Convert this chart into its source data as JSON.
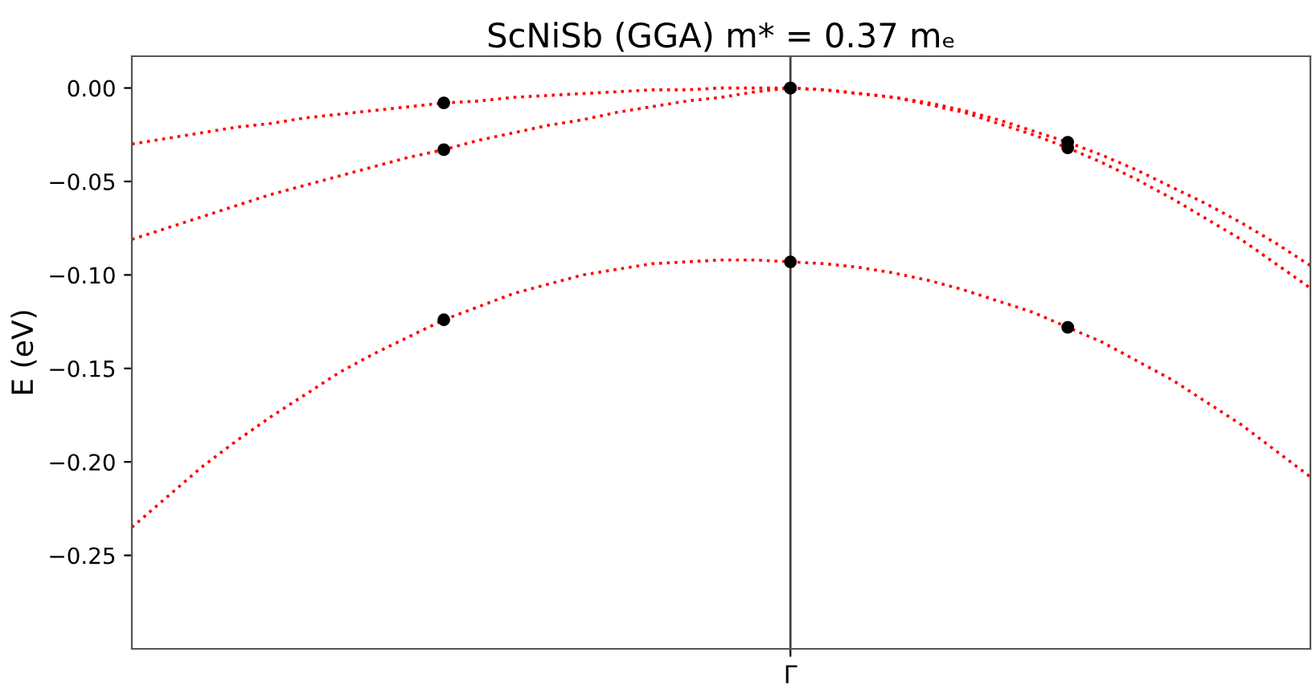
{
  "chart_data": {
    "type": "line",
    "title": "ScNiSb (GGA) m* = 0.37 mₑ",
    "ylabel": "E (eV)",
    "categories": [
      null,
      null,
      null,
      null,
      null,
      null,
      null,
      null,
      null,
      null,
      null,
      null,
      null,
      null,
      null,
      null,
      null,
      null,
      null,
      "Γ",
      null,
      null,
      null,
      null,
      null,
      null,
      null,
      null,
      null,
      null,
      null,
      null,
      null,
      null,
      null
    ],
    "series": [
      {
        "color": "#ff0000",
        "line_style": "dotted",
        "marker": "none",
        "values": [
          -0.03,
          -0.027,
          -0.024,
          -0.021,
          -0.019,
          -0.016,
          -0.014,
          -0.012,
          -0.01,
          -0.008,
          -0.007,
          -0.005,
          -0.004,
          -0.003,
          -0.002,
          -0.001,
          -0.001,
          0,
          0,
          0,
          -0.001,
          -0.003,
          -0.005,
          -0.008,
          -0.012,
          -0.017,
          -0.023,
          -0.029,
          -0.036,
          -0.044,
          -0.053,
          -0.062,
          -0.072,
          -0.083,
          -0.095
        ]
      },
      {
        "color": "#ff0000",
        "line_style": "dotted",
        "marker": "none",
        "values": [
          -0.081,
          -0.075,
          -0.069,
          -0.063,
          -0.057,
          -0.052,
          -0.047,
          -0.042,
          -0.037,
          -0.033,
          -0.028,
          -0.024,
          -0.02,
          -0.017,
          -0.013,
          -0.01,
          -0.007,
          -0.005,
          -0.002,
          0,
          -0.001,
          -0.003,
          -0.005,
          -0.009,
          -0.013,
          -0.019,
          -0.025,
          -0.032,
          -0.04,
          -0.049,
          -0.059,
          -0.07,
          -0.081,
          -0.094,
          -0.107
        ]
      },
      {
        "color": "#ff0000",
        "line_style": "dotted",
        "marker": "none",
        "values": [
          -0.235,
          -0.219,
          -0.203,
          -0.189,
          -0.176,
          -0.164,
          -0.152,
          -0.142,
          -0.133,
          -0.124,
          -0.117,
          -0.11,
          -0.105,
          -0.1,
          -0.097,
          -0.094,
          -0.093,
          -0.092,
          -0.092,
          -0.093,
          -0.094,
          -0.096,
          -0.099,
          -0.103,
          -0.108,
          -0.114,
          -0.12,
          -0.128,
          -0.136,
          -0.146,
          -0.156,
          -0.168,
          -0.18,
          -0.194,
          -0.208
        ]
      },
      {
        "type": "scatter",
        "color": "#000000",
        "marker": "circle",
        "values": [
          null,
          null,
          null,
          null,
          null,
          null,
          null,
          null,
          null,
          -0.008,
          null,
          null,
          null,
          null,
          null,
          null,
          null,
          null,
          null,
          0,
          null,
          null,
          null,
          null,
          null,
          null,
          null,
          -0.029,
          null,
          null,
          null,
          null,
          null,
          null,
          null
        ]
      },
      {
        "type": "scatter",
        "color": "#000000",
        "marker": "circle",
        "values": [
          null,
          null,
          null,
          null,
          null,
          null,
          null,
          null,
          null,
          -0.033,
          null,
          null,
          null,
          null,
          null,
          null,
          null,
          null,
          null,
          0,
          null,
          null,
          null,
          null,
          null,
          null,
          null,
          -0.032,
          null,
          null,
          null,
          null,
          null,
          null,
          null
        ]
      },
      {
        "type": "scatter",
        "color": "#000000",
        "marker": "circle",
        "values": [
          null,
          null,
          null,
          null,
          null,
          null,
          null,
          null,
          null,
          -0.124,
          null,
          null,
          null,
          null,
          null,
          null,
          null,
          null,
          null,
          -0.093,
          null,
          null,
          null,
          null,
          null,
          null,
          null,
          -0.128,
          null,
          null,
          null,
          null,
          null,
          null,
          null
        ]
      }
    ],
    "ref_lines": [
      {
        "axis": "x",
        "value": "Γ",
        "color": "#444444"
      }
    ],
    "ylim": [
      -0.3,
      0.017
    ],
    "yticks": [
      {
        "value": 0,
        "label": "0.00"
      },
      {
        "value": -0.05,
        "label": "−0.05"
      },
      {
        "value": -0.1,
        "label": "−0.10"
      },
      {
        "value": -0.15,
        "label": "−0.15"
      },
      {
        "value": -0.2,
        "label": "−0.20"
      },
      {
        "value": -0.25,
        "label": "−0.25"
      }
    ],
    "grid": false
  }
}
